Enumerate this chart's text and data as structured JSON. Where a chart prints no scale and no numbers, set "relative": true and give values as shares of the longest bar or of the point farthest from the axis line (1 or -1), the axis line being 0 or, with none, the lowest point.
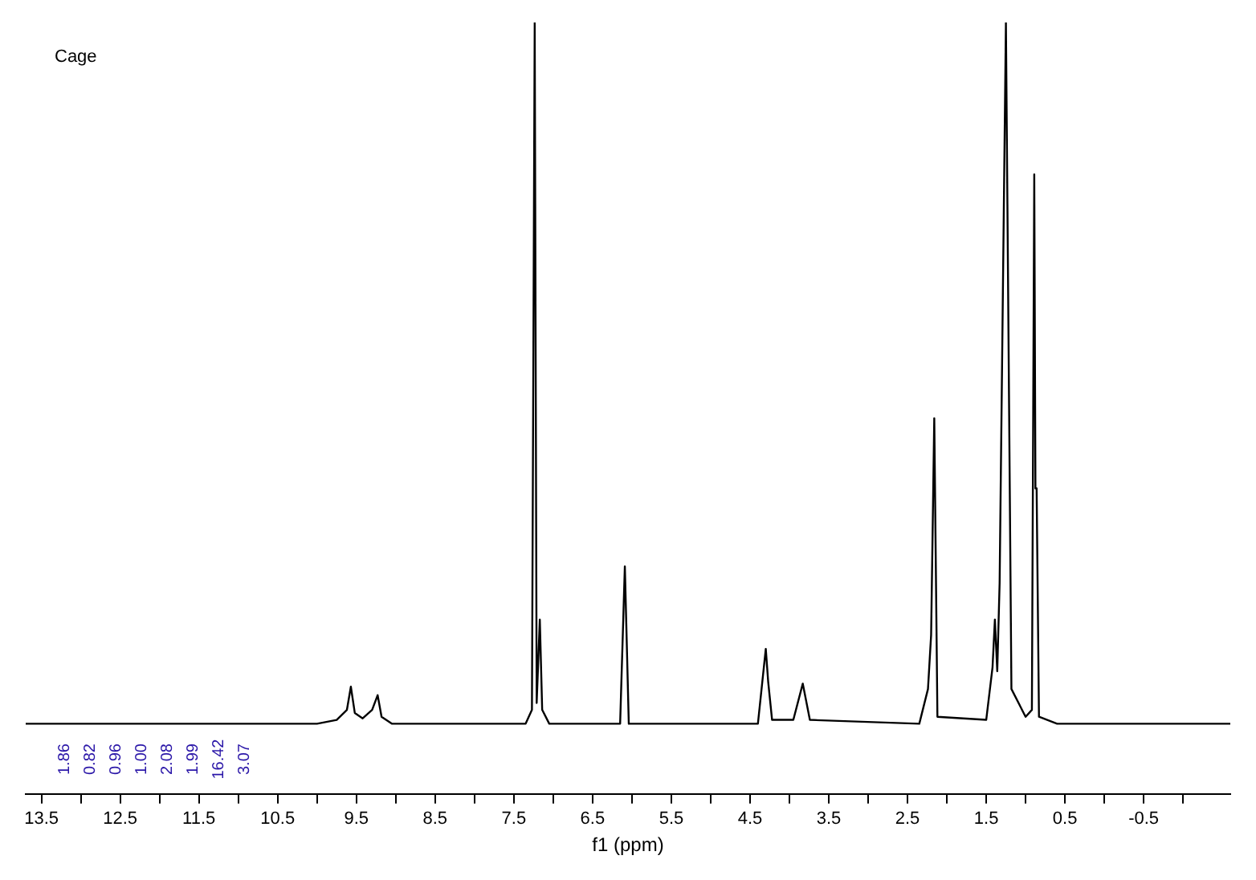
{
  "chart_data": {
    "type": "line",
    "title": "Cage",
    "xlabel": "f1 (ppm)",
    "relative": true,
    "grid": false,
    "legend": false,
    "marker": "none",
    "line_style": "solid",
    "tick_labels": "x",
    "xlim": [
      13.7,
      -1.6
    ],
    "xticks": [
      13.5,
      {
        "value": 13,
        "label": null
      },
      12.5,
      {
        "value": 12,
        "label": null
      },
      11.5,
      {
        "value": 11,
        "label": null
      },
      10.5,
      {
        "value": 10,
        "label": null
      },
      9.5,
      {
        "value": 9,
        "label": null
      },
      8.5,
      {
        "value": 8,
        "label": null
      },
      7.5,
      {
        "value": 7,
        "label": null
      },
      6.5,
      {
        "value": 6,
        "label": null
      },
      5.5,
      {
        "value": 5,
        "label": null
      },
      4.5,
      {
        "value": 4,
        "label": null
      },
      3.5,
      {
        "value": 3,
        "label": null
      },
      2.5,
      {
        "value": 2,
        "label": null
      },
      1.5,
      {
        "value": 1,
        "label": null
      },
      0.5,
      {
        "value": 0,
        "label": null
      },
      -0.5,
      {
        "value": -1,
        "label": null
      }
    ],
    "series": [
      {
        "color": "#000000",
        "x": [
          13.7,
          10.0,
          9.75,
          9.62,
          9.57,
          9.52,
          9.42,
          9.3,
          9.23,
          9.18,
          9.05,
          7.35,
          7.27,
          7.235,
          7.21,
          7.17,
          7.14,
          7.05,
          6.15,
          6.09,
          6.04,
          4.4,
          4.3,
          4.27,
          4.22,
          3.95,
          3.83,
          3.74,
          2.35,
          2.24,
          2.2,
          2.16,
          2.12,
          1.5,
          1.42,
          1.39,
          1.36,
          1.33,
          1.25,
          1.18,
          1.0,
          0.92,
          0.89,
          0.875,
          0.86,
          0.83,
          0.6,
          -1.6
        ],
        "values": [
          0.091,
          0.091,
          0.096,
          0.109,
          0.139,
          0.105,
          0.098,
          0.109,
          0.128,
          0.1,
          0.091,
          0.091,
          0.109,
          1,
          0.118,
          0.226,
          0.109,
          0.091,
          0.091,
          0.295,
          0.091,
          0.091,
          0.188,
          0.146,
          0.096,
          0.096,
          0.143,
          0.096,
          0.091,
          0.136,
          0.206,
          0.487,
          0.1,
          0.096,
          0.164,
          0.226,
          0.159,
          0.273,
          1,
          0.136,
          0.1,
          0.109,
          0.803,
          0.396,
          0.396,
          0.1,
          0.091,
          0.091
        ]
      }
    ],
    "annotations": [
      "1.86",
      "0.82",
      "0.96",
      "1.00",
      "2.08",
      "1.99",
      "16.42",
      "3.07"
    ]
  }
}
